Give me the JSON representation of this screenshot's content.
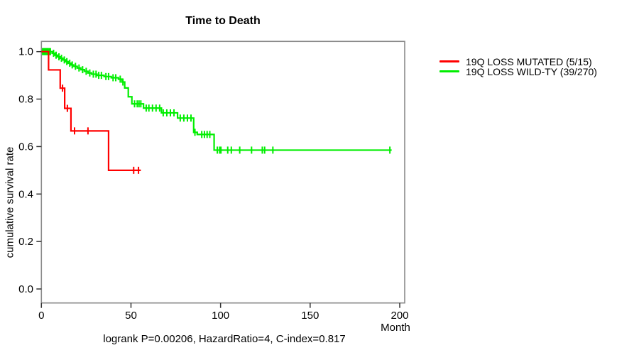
{
  "title": "Time to Death",
  "footer": "logrank P=0.00206, HazardRatio=4, C-index=0.817",
  "chart_data": {
    "type": "line",
    "subtype": "kaplan-meier-survival",
    "title": "Time to Death",
    "xlabel": "Month",
    "ylabel": "cumulative survival rate",
    "xlim": [
      0,
      200
    ],
    "ylim": [
      0.0,
      1.0
    ],
    "x_ticks": [
      0,
      50,
      100,
      150,
      200
    ],
    "x_tick_labels": [
      "0",
      "50",
      "100",
      "150",
      "200"
    ],
    "y_ticks": [
      0.0,
      0.2,
      0.4,
      0.6,
      0.8,
      1.0
    ],
    "y_tick_labels": [
      "0.0",
      "0.2",
      "0.4",
      "0.6",
      "0.8",
      "1.0"
    ],
    "grid": false,
    "legend_position": "right-outside",
    "annotation": "logrank P=0.00206, HazardRatio=4, C-index=0.817",
    "series": [
      {
        "name": "19Q LOSS MUTATED (5/15)",
        "color": "#ff0000",
        "steps": [
          [
            0,
            1.0
          ],
          [
            4,
            0.923
          ],
          [
            10.5,
            0.846
          ],
          [
            13,
            0.761
          ],
          [
            16.5,
            0.666
          ],
          [
            37.5,
            0.5
          ]
        ],
        "end_month": 55.5,
        "censor_months": [
          11.8,
          14.5,
          18.5,
          26,
          51.5,
          54.2
        ]
      },
      {
        "name": "19Q LOSS WILD-TY (39/270)",
        "color": "#00ee00",
        "steps": [
          [
            0,
            1.0
          ],
          [
            6,
            0.993
          ],
          [
            7.5,
            0.985
          ],
          [
            9,
            0.978
          ],
          [
            10.5,
            0.972
          ],
          [
            12,
            0.965
          ],
          [
            13.5,
            0.958
          ],
          [
            15,
            0.951
          ],
          [
            16.5,
            0.944
          ],
          [
            18,
            0.938
          ],
          [
            20,
            0.931
          ],
          [
            22,
            0.924
          ],
          [
            24,
            0.917
          ],
          [
            26,
            0.91
          ],
          [
            28,
            0.905
          ],
          [
            31,
            0.9
          ],
          [
            35,
            0.895
          ],
          [
            39,
            0.89
          ],
          [
            43,
            0.884
          ],
          [
            45,
            0.872
          ],
          [
            46.5,
            0.847
          ],
          [
            48.5,
            0.81
          ],
          [
            50.5,
            0.78
          ],
          [
            57,
            0.762
          ],
          [
            67,
            0.742
          ],
          [
            76,
            0.72
          ],
          [
            85,
            0.66
          ],
          [
            87,
            0.651
          ],
          [
            96.4,
            0.585
          ]
        ],
        "end_month": 195.5,
        "censor_months": [
          0.7,
          1.2,
          1.8,
          2.4,
          3,
          3.6,
          4.3,
          5,
          6.8,
          8.2,
          9.8,
          11.2,
          12.8,
          14.2,
          15.8,
          17.2,
          19,
          21,
          23,
          25,
          27,
          29,
          30.5,
          32,
          33.5,
          36,
          37.5,
          40,
          41.5,
          44,
          45.5,
          52,
          53.5,
          54.5,
          55.5,
          58.5,
          60,
          62,
          64,
          66,
          68,
          70,
          72,
          74,
          77.5,
          79.5,
          81.5,
          83.5,
          85.7,
          89.5,
          91,
          92.5,
          94,
          98.2,
          99.5,
          100.2,
          104,
          106,
          110.7,
          117.3,
          123.3,
          124.6,
          129.2,
          194.5
        ]
      }
    ]
  }
}
